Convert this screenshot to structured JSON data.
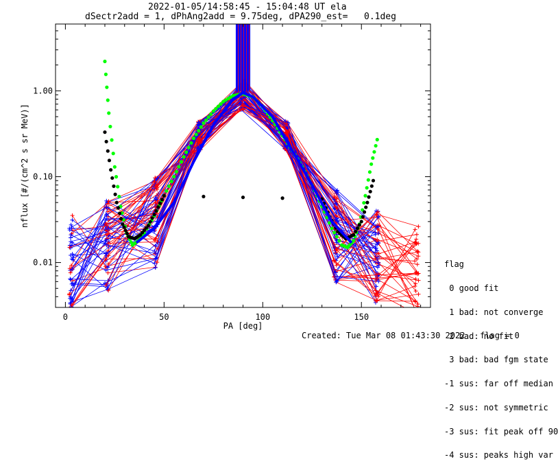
{
  "title_line1": "2022-01-05/14:58:45 - 15:04:48 UT ela",
  "title_line2": "dSectr2add = 1, dPhAng2add = 9.75deg, dPA290_est=   0.1deg",
  "footer": {
    "created": "Created: Tue Mar 08 01:43:30 2022",
    "flag": "flag = 0"
  },
  "legend": {
    "header": "flag",
    "items": [
      " 0 good fit",
      " 1 bad: not converge",
      " 2 bad: no fit",
      " 3 bad: bad fgm state",
      "-1 sus: far off median",
      "-2 sus: not symmetric",
      "-3 sus: fit peak off 90",
      "-4 sus: peaks high var"
    ]
  },
  "colors": {
    "blue": "#0000ff",
    "red": "#ff0000",
    "green": "#00ff00",
    "black": "#000000"
  },
  "chart_data": {
    "type": "line",
    "title": "2022-01-05/14:58:45 - 15:04:48 UT ela",
    "subtitle": "dSectr2add = 1, dPhAng2add = 9.75deg, dPA290_est=   0.1deg",
    "xlabel": "PA [deg]",
    "ylabel": "nflux [#/(cm^2 s sr MeV)]",
    "xlim": [
      -5,
      185
    ],
    "ylim": [
      0.003,
      6.0
    ],
    "yscale": "log",
    "xticks": [
      0,
      50,
      100,
      150
    ],
    "yticks": [
      0.01,
      0.1,
      1.0
    ],
    "ytick_labels": [
      "0.01",
      "0.10",
      "1.00"
    ],
    "grid": false,
    "series": [
      {
        "color": "green",
        "style": "dots",
        "x": [
          20,
          22,
          25,
          28,
          31,
          34,
          37,
          40,
          45,
          50,
          55,
          60,
          65,
          70,
          75,
          80,
          85,
          90,
          95,
          100,
          105,
          110,
          115,
          120,
          125,
          130,
          135,
          140,
          143,
          146,
          149,
          152,
          155,
          158
        ],
        "y": [
          2.2,
          0.55,
          0.13,
          0.045,
          0.022,
          0.016,
          0.018,
          0.022,
          0.035,
          0.06,
          0.1,
          0.17,
          0.28,
          0.42,
          0.58,
          0.75,
          0.88,
          0.92,
          0.85,
          0.65,
          0.45,
          0.3,
          0.2,
          0.13,
          0.08,
          0.045,
          0.025,
          0.016,
          0.015,
          0.018,
          0.028,
          0.06,
          0.14,
          0.27
        ]
      },
      {
        "color": "black",
        "style": "dots",
        "x": [
          20,
          23,
          26,
          29,
          32,
          35,
          38,
          42,
          46,
          50,
          130,
          134,
          138,
          142,
          146,
          150,
          153,
          156
        ],
        "y": [
          0.33,
          0.12,
          0.05,
          0.028,
          0.02,
          0.019,
          0.021,
          0.027,
          0.04,
          0.06,
          0.055,
          0.034,
          0.023,
          0.019,
          0.021,
          0.03,
          0.05,
          0.09
        ]
      },
      {
        "color": "blue",
        "style": "line",
        "x": [
          36,
          45,
          55,
          65,
          75,
          85,
          90,
          95,
          105,
          115,
          125,
          135,
          145
        ],
        "y": [
          0.017,
          0.025,
          0.05,
          0.15,
          0.4,
          0.8,
          0.95,
          0.85,
          0.5,
          0.2,
          0.08,
          0.03,
          0.017
        ]
      }
    ]
  }
}
